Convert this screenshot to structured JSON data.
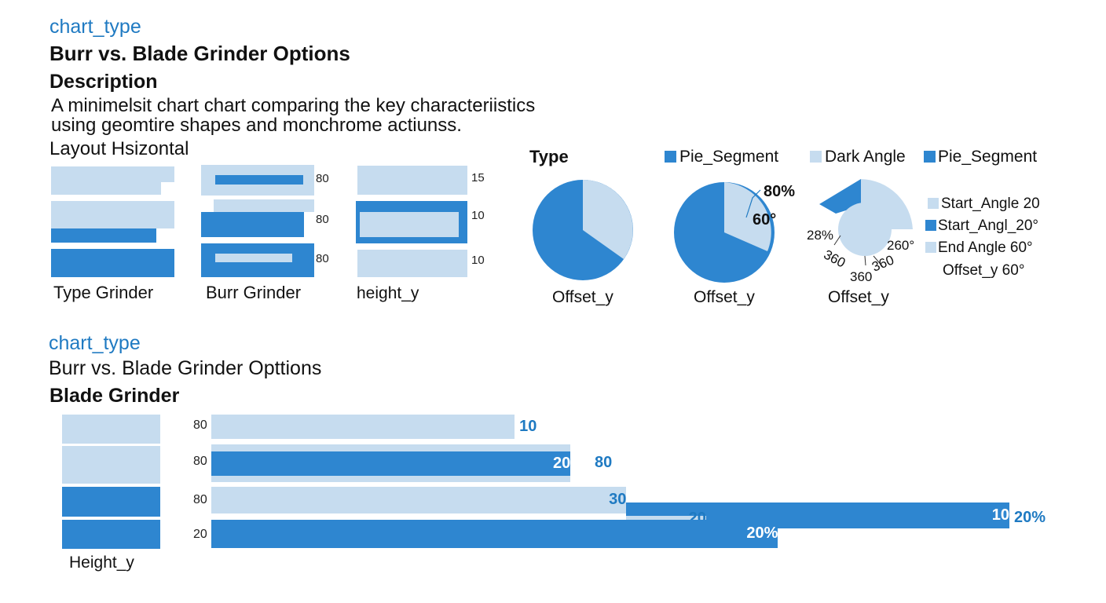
{
  "colors": {
    "dark": "#2e86d0",
    "light": "#c6dcef",
    "accent_text": "#1f7ac2"
  },
  "top": {
    "kicker": "chart_type",
    "title": "Burr vs. Blade Grinder Options",
    "desc_heading": "Description",
    "desc_line1": "A minimelsit chart chart comparing the key characteriistics",
    "desc_line2": "using geomtire shapes and monchrome actiunss.",
    "layout_label": "Layout Hsizontal"
  },
  "small_multiples": [
    {
      "label": "Type Grinder",
      "ticks": []
    },
    {
      "label": "Burr Grinder",
      "ticks": [
        "80",
        "80",
        "80"
      ]
    },
    {
      "label": "height_y",
      "ticks": [
        "15",
        "10",
        "10"
      ]
    }
  ],
  "pies": {
    "type_label": "Type",
    "legend": [
      "Pie_Segment",
      "Dark Angle",
      "Pie_Segment"
    ],
    "captions": [
      "Offset_y",
      "Offset_y",
      "Offset_y"
    ],
    "pie2_annotations": [
      "80%",
      "60°"
    ],
    "donut_annotations": [
      "28%",
      "260°",
      "360",
      "360",
      "360"
    ],
    "side_legend": [
      "Start_Angle 20",
      "Start_Angl_20°",
      "End Angle 60°",
      "Offset_y 60°"
    ]
  },
  "bottom": {
    "kicker": "chart_type",
    "subtitle": "Burr vs. Blade Grinder Opttions",
    "heading": "Blade Grinder",
    "left_label": "Height_y"
  },
  "chart_data": {
    "type": "bar",
    "title": "Burr vs. Blade Grinder Opttions",
    "categories": [
      "80",
      "80",
      "80",
      "20"
    ],
    "bars": [
      {
        "color": "light",
        "start": 0,
        "end": 38,
        "label": "10",
        "label_pos": "outside"
      },
      {
        "color": "light",
        "start": 0,
        "end": 45,
        "label": "",
        "label_pos": ""
      },
      {
        "color": "dark",
        "start": 0,
        "end": 45,
        "label": "20",
        "label_pos": "inside"
      },
      {
        "color": "light",
        "start": 0,
        "end": 52,
        "label": "30",
        "label_pos": "inside"
      },
      {
        "color": "dark",
        "start": 52,
        "end": 100,
        "label": "10",
        "label_pos": "inside"
      },
      {
        "color": "light",
        "start": 52,
        "end": 62,
        "label": "20",
        "label_pos": "inside"
      },
      {
        "color": "dark",
        "start": 0,
        "end": 71,
        "label": "20%",
        "label_pos": "inside"
      }
    ],
    "outside_labels": [
      "80",
      "20%"
    ]
  }
}
